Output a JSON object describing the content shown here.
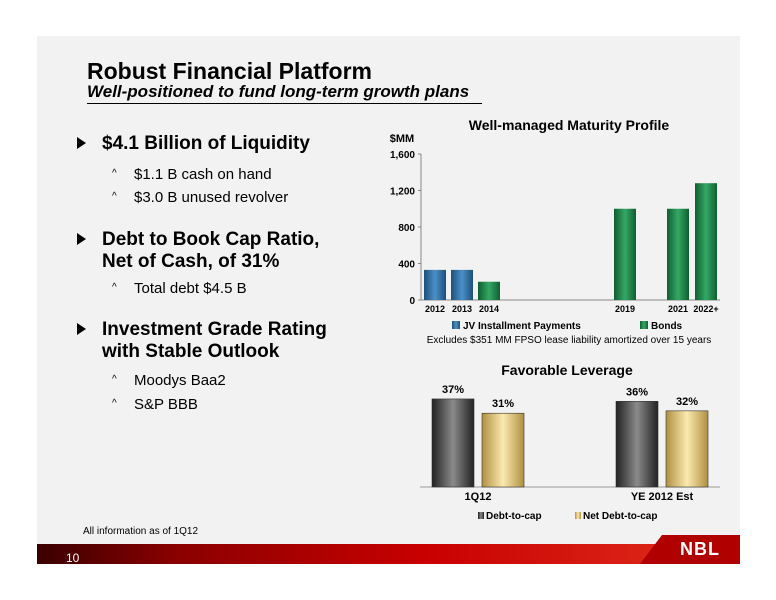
{
  "title": "Robust Financial Platform",
  "subtitle": "Well-positioned to fund long-term growth plans",
  "bullets": [
    {
      "line1": "$4.1 Billion of Liquidity",
      "line2": "",
      "subs": [
        "$1.1 B cash on hand",
        "$3.0 B unused revolver"
      ]
    },
    {
      "line1": "Debt to Book Cap Ratio,",
      "line2": "Net of Cash, of 31%",
      "subs": [
        "Total debt $4.5 B"
      ]
    },
    {
      "line1": "Investment Grade Rating",
      "line2": "with Stable Outlook",
      "subs": [
        "Moodys Baa2",
        "S&P BBB"
      ]
    }
  ],
  "footnote": "All information as of 1Q12",
  "page_number": "10",
  "logo_text": "NBL",
  "chart_data": [
    {
      "type": "bar",
      "title": "Well-managed Maturity Profile",
      "ylabel": "$MM",
      "ylim": [
        0,
        1600
      ],
      "yticks": [
        "0",
        "400",
        "800",
        "1,200",
        "1,600"
      ],
      "categories": [
        "2012",
        "2013",
        "2014",
        "2019",
        "2021",
        "2022+"
      ],
      "series": [
        {
          "name": "JV Installment Payments",
          "color": "#2f6fa3",
          "values": [
            330,
            330,
            0,
            0,
            0,
            0
          ]
        },
        {
          "name": "Bonds",
          "color": "#1e8a4c",
          "values": [
            0,
            0,
            200,
            1000,
            1000,
            1280
          ]
        }
      ],
      "grid": false,
      "legend": "bottom",
      "note": "Excludes $351 MM FPSO lease liability amortized over 15 years"
    },
    {
      "type": "bar",
      "title": "Favorable Leverage",
      "categories": [
        "1Q12",
        "YE 2012 Est"
      ],
      "series": [
        {
          "name": "Debt-to-cap",
          "color": "#595959",
          "values": [
            37,
            36
          ],
          "labels": [
            "37%",
            "36%"
          ]
        },
        {
          "name": "Net Debt-to-cap",
          "color": "#f0d890",
          "values": [
            31,
            32
          ],
          "labels": [
            "31%",
            "32%"
          ]
        }
      ],
      "legend": "bottom"
    }
  ]
}
